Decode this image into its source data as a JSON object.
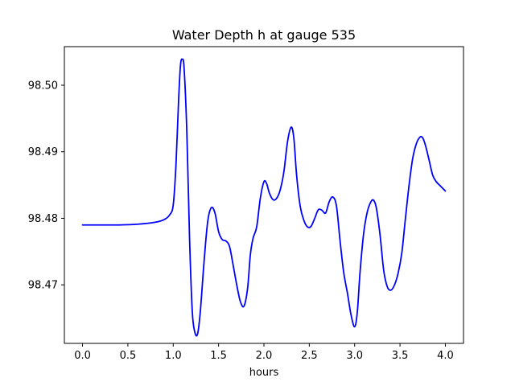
{
  "chart_data": {
    "type": "line",
    "title": "Water Depth h at gauge 535",
    "xlabel": "hours",
    "ylabel": "",
    "xlim": [
      -0.2,
      4.2
    ],
    "ylim": [
      98.4612,
      98.5058
    ],
    "x_ticks": [
      0.0,
      0.5,
      1.0,
      1.5,
      2.0,
      2.5,
      3.0,
      3.5,
      4.0
    ],
    "x_tick_labels": [
      "0.0",
      "0.5",
      "1.0",
      "1.5",
      "2.0",
      "2.5",
      "3.0",
      "3.5",
      "4.0"
    ],
    "y_ticks": [
      98.47,
      98.48,
      98.49,
      98.5
    ],
    "y_tick_labels": [
      "98.47",
      "98.48",
      "98.49",
      "98.50"
    ],
    "grid": false,
    "legend": "none",
    "series": [
      {
        "color": "#0000ff",
        "points": [
          [
            0.0,
            98.479
          ],
          [
            0.2,
            98.479
          ],
          [
            0.4,
            98.479
          ],
          [
            0.6,
            98.4791
          ],
          [
            0.8,
            98.4794
          ],
          [
            0.9,
            98.4798
          ],
          [
            0.96,
            98.4805
          ],
          [
            1.0,
            98.482
          ],
          [
            1.03,
            98.488
          ],
          [
            1.06,
            98.498
          ],
          [
            1.08,
            98.503
          ],
          [
            1.1,
            98.5039
          ],
          [
            1.12,
            98.5025
          ],
          [
            1.15,
            98.493
          ],
          [
            1.18,
            98.477
          ],
          [
            1.21,
            98.466
          ],
          [
            1.24,
            98.4628
          ],
          [
            1.27,
            98.4627
          ],
          [
            1.3,
            98.4662
          ],
          [
            1.34,
            98.4735
          ],
          [
            1.38,
            98.4795
          ],
          [
            1.42,
            98.4816
          ],
          [
            1.46,
            98.4808
          ],
          [
            1.5,
            98.478
          ],
          [
            1.54,
            98.4768
          ],
          [
            1.58,
            98.4766
          ],
          [
            1.62,
            98.4758
          ],
          [
            1.66,
            98.473
          ],
          [
            1.7,
            98.47
          ],
          [
            1.74,
            98.4675
          ],
          [
            1.78,
            98.4668
          ],
          [
            1.82,
            98.4695
          ],
          [
            1.85,
            98.4745
          ],
          [
            1.88,
            98.477
          ],
          [
            1.92,
            98.4787
          ],
          [
            1.96,
            98.483
          ],
          [
            2.0,
            98.4855
          ],
          [
            2.03,
            98.4852
          ],
          [
            2.06,
            98.4838
          ],
          [
            2.1,
            98.4828
          ],
          [
            2.14,
            98.483
          ],
          [
            2.18,
            98.4843
          ],
          [
            2.22,
            98.487
          ],
          [
            2.26,
            98.4915
          ],
          [
            2.3,
            98.4937
          ],
          [
            2.33,
            98.492
          ],
          [
            2.36,
            98.4865
          ],
          [
            2.4,
            98.4818
          ],
          [
            2.44,
            98.4797
          ],
          [
            2.48,
            98.4787
          ],
          [
            2.52,
            98.4788
          ],
          [
            2.56,
            98.48
          ],
          [
            2.6,
            98.4813
          ],
          [
            2.64,
            98.4812
          ],
          [
            2.68,
            98.4808
          ],
          [
            2.72,
            98.4825
          ],
          [
            2.76,
            98.4832
          ],
          [
            2.8,
            98.4818
          ],
          [
            2.84,
            98.4765
          ],
          [
            2.88,
            98.4718
          ],
          [
            2.92,
            98.4688
          ],
          [
            2.96,
            98.4655
          ],
          [
            3.0,
            98.4637
          ],
          [
            3.03,
            98.466
          ],
          [
            3.06,
            98.472
          ],
          [
            3.1,
            98.4778
          ],
          [
            3.14,
            98.481
          ],
          [
            3.18,
            98.4825
          ],
          [
            3.21,
            98.4827
          ],
          [
            3.24,
            98.4815
          ],
          [
            3.28,
            98.4775
          ],
          [
            3.32,
            98.4722
          ],
          [
            3.36,
            98.4697
          ],
          [
            3.4,
            98.4692
          ],
          [
            3.44,
            98.47
          ],
          [
            3.48,
            98.4718
          ],
          [
            3.52,
            98.4748
          ],
          [
            3.56,
            98.48
          ],
          [
            3.6,
            98.485
          ],
          [
            3.64,
            98.489
          ],
          [
            3.68,
            98.4912
          ],
          [
            3.72,
            98.4922
          ],
          [
            3.75,
            98.4921
          ],
          [
            3.78,
            98.491
          ],
          [
            3.82,
            98.4888
          ],
          [
            3.86,
            98.4865
          ],
          [
            3.9,
            98.4855
          ],
          [
            3.95,
            98.4848
          ],
          [
            4.0,
            98.4841
          ]
        ]
      }
    ]
  }
}
